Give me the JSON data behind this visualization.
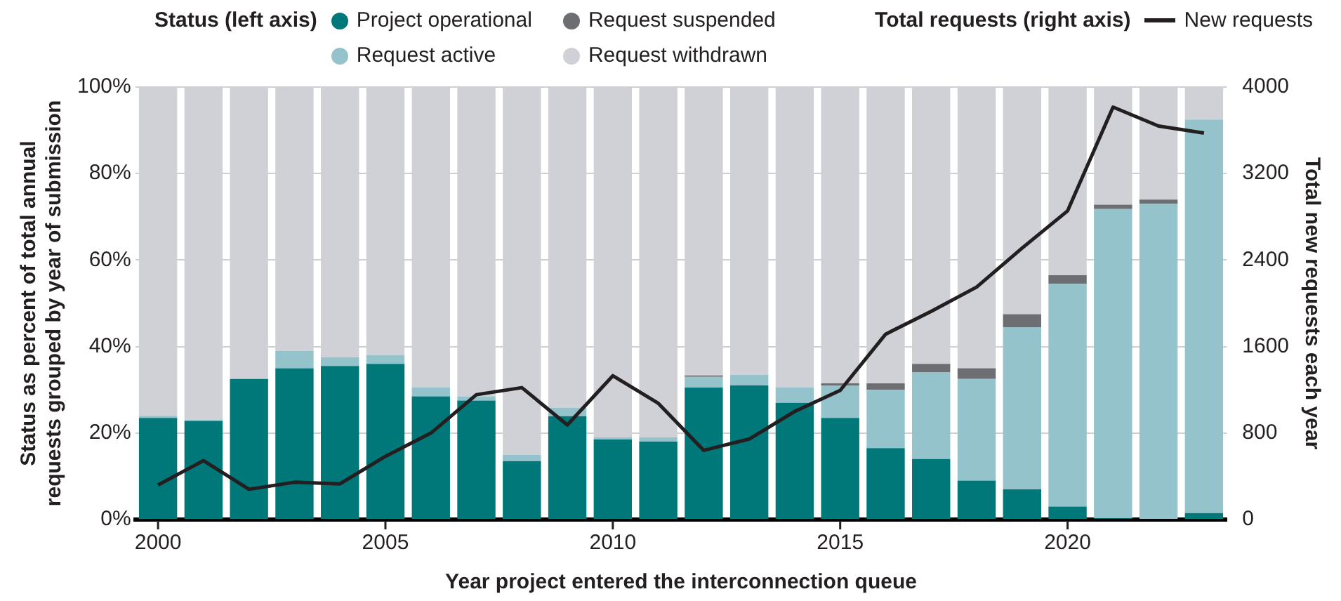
{
  "chart_data": {
    "type": "bar",
    "stacked": true,
    "xlabel": "Year project entered the interconnection queue",
    "ylabel": "Status as percent of total annual requests grouped by year of submission",
    "y2label": "Total new requests each year",
    "legend_title": "Status (left axis)",
    "annotations": [
      "Total requests (right axis)"
    ],
    "categories": [
      "2000",
      null,
      null,
      null,
      null,
      "2005",
      null,
      null,
      null,
      null,
      "2010",
      null,
      null,
      null,
      null,
      "2015",
      null,
      null,
      null,
      null,
      "2020",
      null,
      null,
      null
    ],
    "series": [
      {
        "name": "Project operational",
        "color": "#00787a",
        "values": [
          23.5,
          22.8,
          32.5,
          35,
          35.5,
          36,
          28.5,
          27.5,
          13.5,
          23.9,
          18.5,
          18,
          30.5,
          31,
          27,
          23.5,
          16.5,
          14,
          9,
          7,
          3,
          0.3,
          0,
          1.5
        ]
      },
      {
        "name": "Request active",
        "color": "#95c3cb",
        "values": [
          0.5,
          0.3,
          0,
          4,
          2,
          2,
          2,
          1,
          1.5,
          2,
          0.5,
          1,
          2.5,
          2.5,
          3.5,
          7.5,
          13.5,
          20,
          23.5,
          37.5,
          51.5,
          71.5,
          73,
          91
        ]
      },
      {
        "name": "Request suspended",
        "color": "#6d6e71",
        "values": [
          0,
          0,
          0,
          0,
          0,
          0,
          0,
          0,
          0,
          0,
          0,
          0,
          0.3,
          0,
          0,
          0.5,
          1.5,
          2,
          2.5,
          3,
          2,
          1,
          1,
          0
        ]
      },
      {
        "name": "Request withdrawn",
        "color": "#d0d1d6",
        "values": [
          76,
          76.9,
          67.5,
          61,
          62.5,
          62,
          69.5,
          71.5,
          85,
          74.1,
          81,
          81,
          66.7,
          66.5,
          69.5,
          68.5,
          68.5,
          64,
          65,
          52.5,
          43.5,
          27.2,
          26,
          7.5
        ]
      },
      {
        "name": "New requests",
        "type": "line",
        "axis": "y2",
        "color": "#231f20",
        "values": [
          320,
          545,
          280,
          345,
          330,
          585,
          800,
          1155,
          1220,
          875,
          1330,
          1075,
          640,
          745,
          1000,
          1195,
          1715,
          1925,
          2150,
          2510,
          2855,
          3815,
          3640,
          3575
        ]
      }
    ],
    "ylim": [
      0,
      100
    ],
    "yticks": [
      {
        "value": 0,
        "label": "0%"
      },
      {
        "value": 20,
        "label": "20%"
      },
      {
        "value": 40,
        "label": "40%"
      },
      {
        "value": 60,
        "label": "60%"
      },
      {
        "value": 80,
        "label": "80%"
      },
      {
        "value": 100,
        "label": "100%"
      }
    ],
    "y2lim": [
      0,
      4000
    ],
    "y2ticks": [
      0,
      800,
      1600,
      2400,
      3200,
      4000
    ],
    "grid": "y",
    "legend": "top",
    "marker": "none",
    "line_style": "solid"
  }
}
